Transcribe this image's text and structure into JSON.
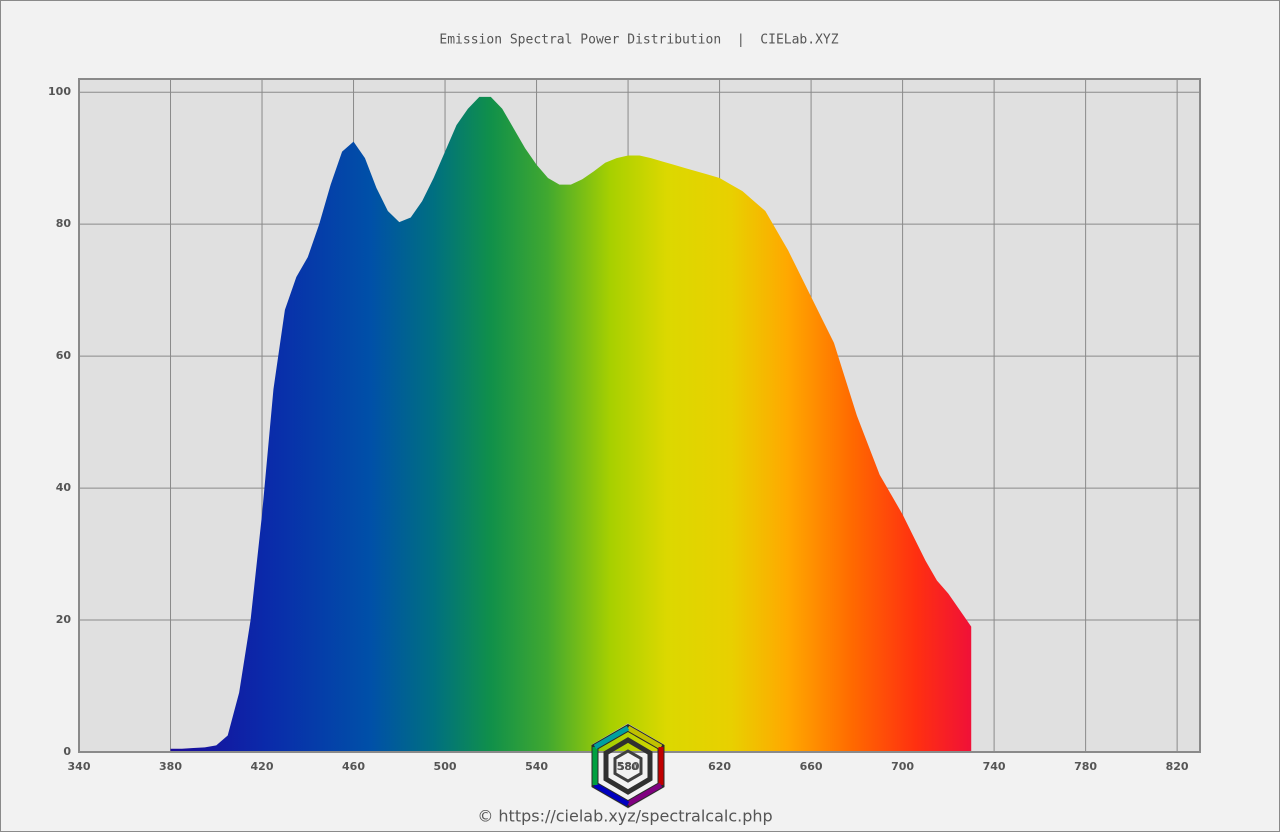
{
  "chart_data": {
    "type": "area",
    "title": "Emission Spectral Power Distribution  |  CIELab.XYZ",
    "x": [
      380,
      385,
      390,
      395,
      400,
      405,
      410,
      415,
      420,
      425,
      430,
      435,
      440,
      445,
      450,
      455,
      460,
      465,
      470,
      475,
      480,
      485,
      490,
      495,
      500,
      505,
      510,
      515,
      520,
      525,
      530,
      535,
      540,
      545,
      550,
      555,
      560,
      565,
      570,
      575,
      580,
      585,
      590,
      595,
      600,
      605,
      610,
      615,
      620,
      625,
      630,
      635,
      640,
      645,
      650,
      655,
      660,
      665,
      670,
      675,
      680,
      685,
      690,
      695,
      700,
      705,
      710,
      715,
      720,
      725,
      730
    ],
    "series": [
      {
        "values": [
          0.5,
          0.5,
          0.6,
          0.7,
          1,
          2.5,
          9,
          20,
          36,
          55,
          67,
          72,
          75,
          80,
          86,
          91,
          92.5,
          90,
          85.5,
          82,
          80.3,
          81,
          83.5,
          87,
          91,
          95,
          97.5,
          99.3,
          99.3,
          97.5,
          94.5,
          91.5,
          89,
          87,
          86,
          86,
          86.8,
          88,
          89.3,
          90,
          90.4,
          90.4,
          90,
          89.5,
          89,
          88.5,
          88,
          87.5,
          87,
          86,
          85,
          83.5,
          82,
          79,
          76,
          72.5,
          69,
          65.5,
          62,
          56.5,
          51,
          46.5,
          42,
          39,
          36,
          32.5,
          29,
          26,
          24,
          21.5,
          19
        ]
      }
    ],
    "xlim": [
      340,
      830
    ],
    "ylim": [
      0,
      102
    ],
    "xticks": [
      340,
      380,
      420,
      460,
      500,
      540,
      580,
      620,
      660,
      700,
      740,
      780,
      820
    ],
    "yticks": [
      0,
      20,
      40,
      60,
      80,
      100
    ],
    "grid": true,
    "logo_label": "580",
    "footer": "© https://cielab.xyz/spectralcalc.php"
  }
}
